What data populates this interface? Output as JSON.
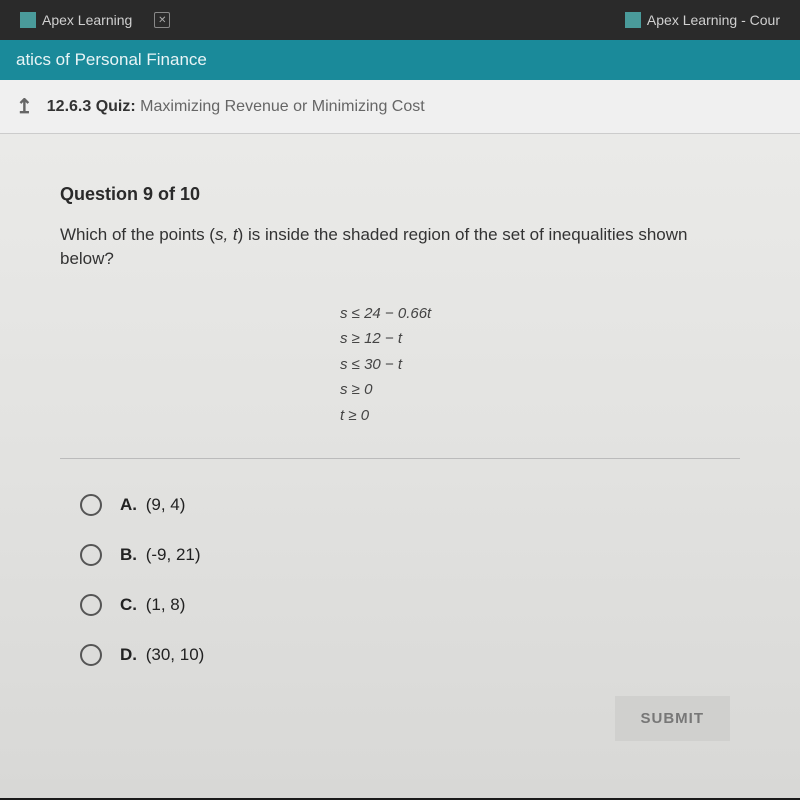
{
  "tabs": {
    "tab1": {
      "label": "Apex Learning"
    },
    "tab2": {
      "label": "Apex Learning - Cour"
    }
  },
  "course_bar": {
    "title": "atics of Personal Finance"
  },
  "breadcrumb": {
    "number": "12.6.3",
    "type": "Quiz:",
    "title": "Maximizing Revenue or Minimizing Cost"
  },
  "question": {
    "counter": "Question 9 of 10",
    "prompt_before": "Which of the points (",
    "prompt_vars": "s, t",
    "prompt_after": ") is inside the shaded region of the set of inequalities shown below?"
  },
  "inequalities": {
    "line1": "s ≤ 24 − 0.66t",
    "line2": "s ≥ 12 − t",
    "line3": "s ≤ 30 − t",
    "line4": "s ≥ 0",
    "line5": "t ≥ 0"
  },
  "options": {
    "a": {
      "letter": "A.",
      "value": "(9, 4)"
    },
    "b": {
      "letter": "B.",
      "value": "(-9, 21)"
    },
    "c": {
      "letter": "C.",
      "value": "(1, 8)"
    },
    "d": {
      "letter": "D.",
      "value": "(30, 10)"
    }
  },
  "submit": {
    "label": "SUBMIT"
  },
  "colors": {
    "course_bar_bg": "#1a8a9a",
    "content_bg": "#e8e8e6",
    "tab_bar_bg": "#2a2a2a"
  }
}
